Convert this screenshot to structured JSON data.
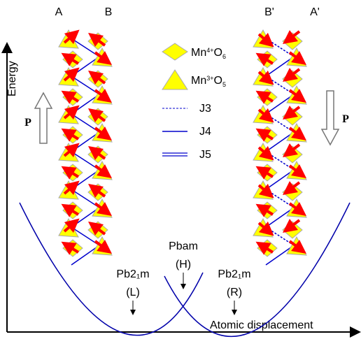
{
  "columns": {
    "left": [
      "A",
      "B"
    ],
    "right": [
      "B'",
      "A'"
    ]
  },
  "legend": {
    "octahedron": {
      "base": "Mn",
      "charge": "4+",
      "anion": "O",
      "count": "6"
    },
    "pyramid": {
      "base": "Mn",
      "charge": "3+",
      "anion": "O",
      "count": "5"
    },
    "bonds": [
      "J3",
      "J4",
      "J5"
    ]
  },
  "polarization": {
    "left": "P",
    "right": "P"
  },
  "axes": {
    "y": "Energy",
    "x": "Atomic displacement"
  },
  "states": {
    "high": {
      "name": "Pbam",
      "tag": "(H)"
    },
    "left": {
      "name": "Pb2₁m",
      "tag": "(L)"
    },
    "right": {
      "name": "Pb2₁m",
      "tag": "(R)"
    }
  }
}
